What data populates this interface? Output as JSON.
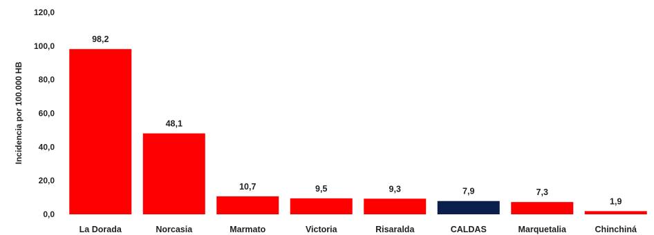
{
  "chart_data": {
    "type": "bar",
    "categories": [
      "La Dorada",
      "Norcasia",
      "Marmato",
      "Victoria",
      "Risaralda",
      "CALDAS",
      "Marquetalia",
      "Chinchiná"
    ],
    "values": [
      98.2,
      48.1,
      10.7,
      9.5,
      9.3,
      7.9,
      7.3,
      1.9
    ],
    "data_labels": [
      "98,2",
      "48,1",
      "10,7",
      "9,5",
      "9,3",
      "7,9",
      "7,3",
      "1,9"
    ],
    "colors": [
      "#ff0000",
      "#ff0000",
      "#ff0000",
      "#ff0000",
      "#ff0000",
      "#0b1f4d",
      "#ff0000",
      "#ff0000"
    ],
    "ylabel": "Incidencia por 100.000 HB",
    "ylim": [
      0,
      120
    ],
    "yticks": [
      0,
      20,
      40,
      60,
      80,
      100,
      120
    ],
    "ytick_labels": [
      "0,0",
      "20,0",
      "40,0",
      "60,0",
      "80,0",
      "100,0",
      "120,0"
    ],
    "grid": false,
    "legend": "none"
  }
}
